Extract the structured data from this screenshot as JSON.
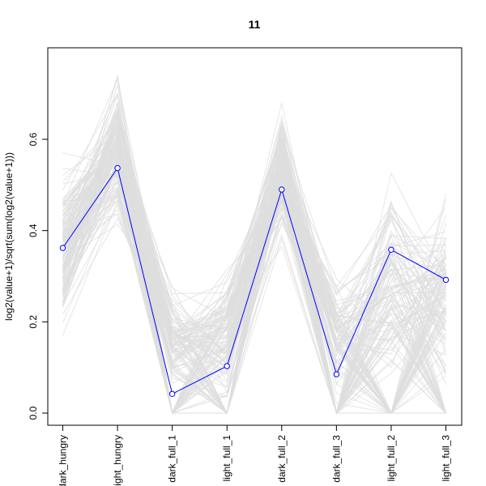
{
  "chart_data": {
    "type": "line",
    "title": "11",
    "ylabel": "log2(value+1)/sqrt(sum(log2(value+1)))",
    "xlabel": "",
    "categories": [
      "dark_hungry",
      "light_hungry",
      "dark_full_1",
      "light_full_1",
      "dark_full_2",
      "dark_full_3",
      "light_full_2",
      "light_full_3"
    ],
    "ylim": [
      0,
      0.78
    ],
    "yticks": [
      0.0,
      0.2,
      0.4,
      0.6
    ],
    "ytick_labels": [
      "0.0",
      "0.2",
      "0.4",
      "0.6"
    ],
    "grid": false,
    "legend": "none",
    "highlight_series": {
      "values": [
        0.362,
        0.537,
        0.042,
        0.103,
        0.49,
        0.085,
        0.358,
        0.292
      ],
      "color": "#0000ff"
    },
    "background_series": {
      "color": "#dedede",
      "description_ranges": {
        "dark_hungry": [
          0.14,
          0.59
        ],
        "light_hungry": [
          0.39,
          0.77
        ],
        "dark_full_1": [
          0.0,
          0.31
        ],
        "light_full_1": [
          0.0,
          0.34
        ],
        "dark_full_2": [
          0.34,
          0.72
        ],
        "dark_full_3": [
          0.0,
          0.34
        ],
        "light_full_2": [
          0.0,
          0.57
        ],
        "light_full_3": [
          0.0,
          0.53
        ]
      }
    }
  }
}
